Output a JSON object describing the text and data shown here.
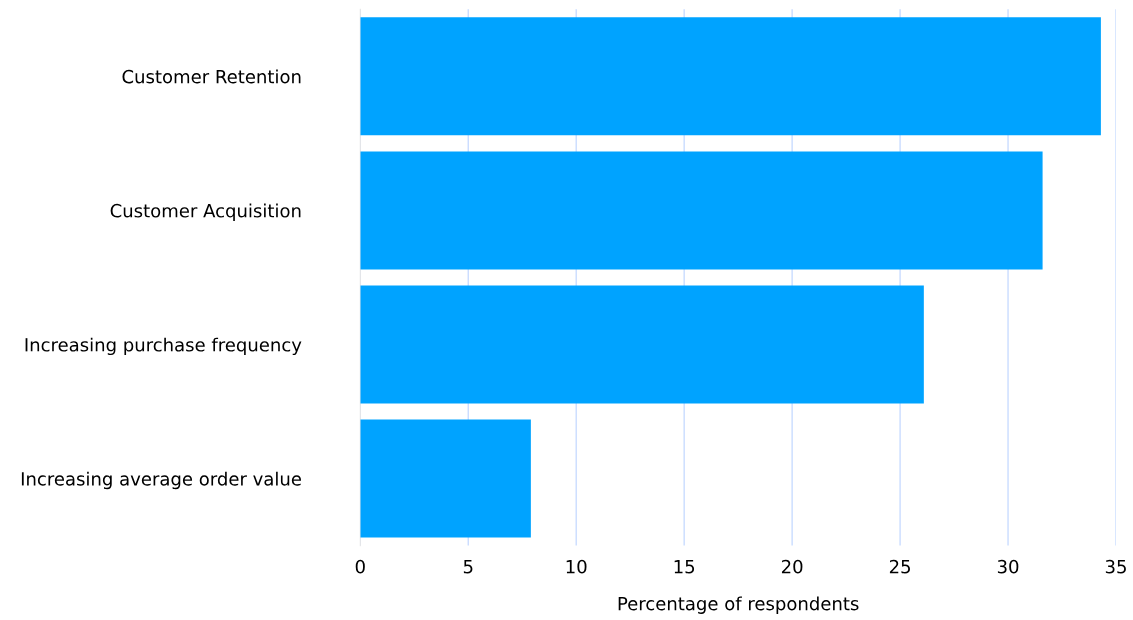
{
  "chart_data": {
    "type": "bar",
    "orientation": "horizontal",
    "xlabel": "Percentage of respondents",
    "categories": [
      "Customer Retention",
      "Customer Acquisition",
      "Increasing purchase frequency",
      "Increasing average order value"
    ],
    "values": [
      34.3,
      31.6,
      26.1,
      7.9
    ],
    "color": "#00a3ff",
    "xlim": [
      0,
      35
    ],
    "xticks": [
      0,
      5,
      10,
      15,
      20,
      25,
      30,
      35
    ],
    "grid": "x",
    "legend": false
  }
}
